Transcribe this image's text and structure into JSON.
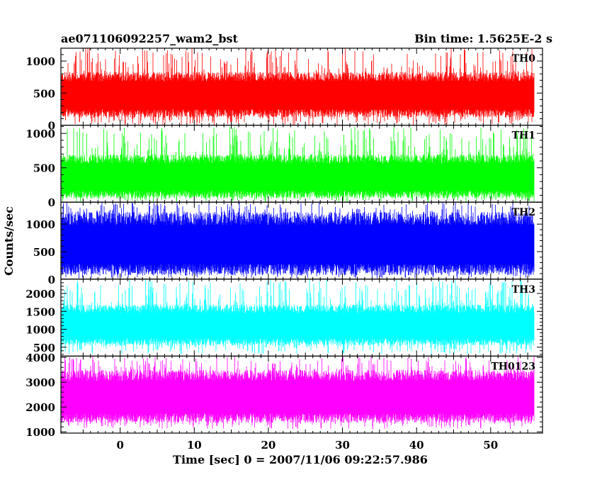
{
  "header": {
    "title": "ae071106092257_wam2_bst",
    "bin_time": "Bin time: 1.5625E-2 s"
  },
  "chart_data": {
    "type": "line",
    "title": "ae071106092257_wam2_bst",
    "xlabel": "Time [sec] 0 = 2007/11/06 09:22:57.986",
    "ylabel": "Counts/sec",
    "xlim": [
      -8,
      57
    ],
    "x_range_data": [
      -7.9,
      55.9
    ],
    "bin_time_s": 0.015625,
    "x_ticks": [
      0,
      10,
      20,
      30,
      40,
      50
    ],
    "x_tick_labels": [
      "0",
      "10",
      "20",
      "30",
      "40",
      "50"
    ],
    "panels": [
      {
        "name": "TH0",
        "color": "#ff0000",
        "ylim": [
          0,
          1200
        ],
        "y_ticks": [
          0,
          500,
          1000
        ],
        "y_tick_labels": [
          "0",
          "500",
          "1000"
        ],
        "base_low": 250,
        "base_high": 680,
        "spike_max": 1200,
        "floor_min": 0
      },
      {
        "name": "TH1",
        "color": "#00ff00",
        "ylim": [
          0,
          1120
        ],
        "y_ticks": [
          0,
          500,
          1000
        ],
        "y_tick_labels": [
          "0",
          "500",
          "1000"
        ],
        "base_low": 170,
        "base_high": 560,
        "spike_max": 1100,
        "floor_min": 0
      },
      {
        "name": "TH2",
        "color": "#0000ff",
        "ylim": [
          0,
          1400
        ],
        "y_ticks": [
          0,
          500,
          1000
        ],
        "y_tick_labels": [
          "0",
          "500",
          "1000"
        ],
        "base_low": 280,
        "base_high": 980,
        "spike_max": 1400,
        "floor_min": 10
      },
      {
        "name": "TH3",
        "color": "#00ffff",
        "ylim": [
          250,
          2400
        ],
        "y_ticks": [
          500,
          1000,
          1500,
          2000
        ],
        "y_tick_labels": [
          "500",
          "1000",
          "1500",
          "2000"
        ],
        "base_low": 750,
        "base_high": 1450,
        "spike_max": 2400,
        "floor_min": 300
      },
      {
        "name": "TH0123",
        "color": "#ff00ff",
        "ylim": [
          950,
          4050
        ],
        "y_ticks": [
          1000,
          2000,
          3000,
          4000
        ],
        "y_tick_labels": [
          "1000",
          "2000",
          "3000",
          "4000"
        ],
        "base_low": 1750,
        "base_high": 3050,
        "spike_max": 4050,
        "floor_min": 1100
      }
    ]
  }
}
